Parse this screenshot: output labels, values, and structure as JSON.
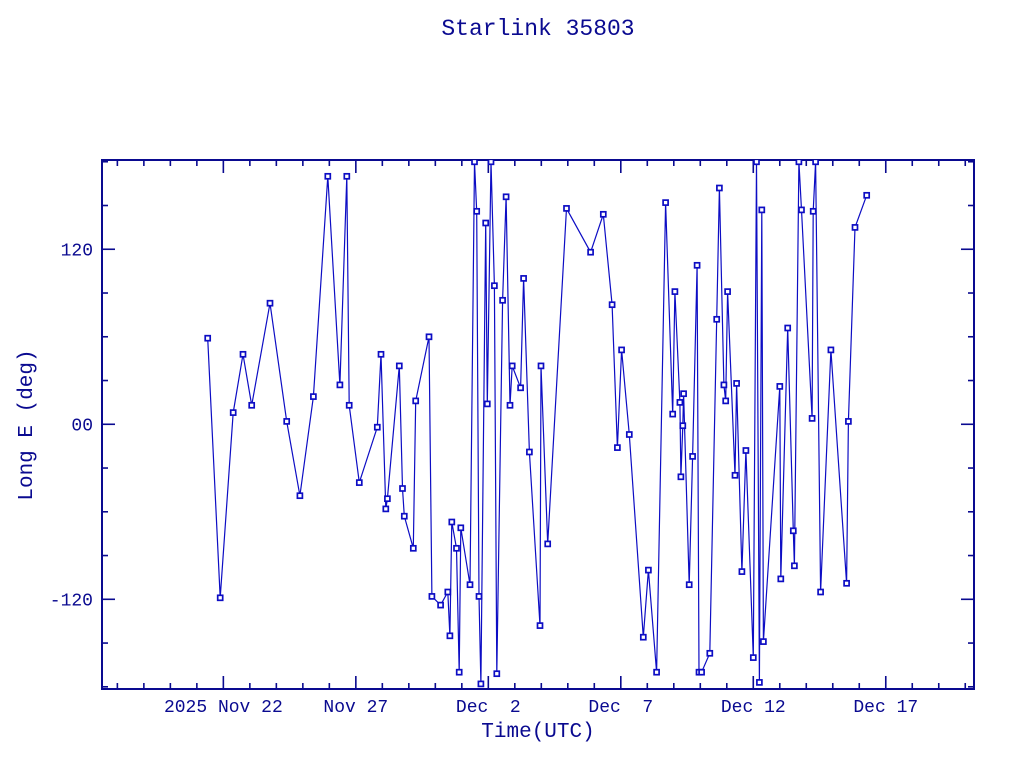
{
  "chart_data": {
    "type": "line",
    "title": "Starlink 35803",
    "xlabel": "Time(UTC)",
    "ylabel": "Long E (deg)",
    "x_unit": "days since 2025-11-17 00:00 UTC",
    "xlim": [
      0.42,
      33.33
    ],
    "ylim": [
      -181.5,
      181.2
    ],
    "grid": false,
    "legend": "none",
    "x_major_ticks": [
      {
        "t": 5,
        "label": "2025 Nov 22"
      },
      {
        "t": 10,
        "label": "Nov 27"
      },
      {
        "t": 15,
        "label": "Dec  2"
      },
      {
        "t": 20,
        "label": "Dec  7"
      },
      {
        "t": 25,
        "label": "Dec 12"
      },
      {
        "t": 30,
        "label": "Dec 17"
      }
    ],
    "x_minor_tick_step_days": 1,
    "x_minor_tick_range": [
      1,
      33
    ],
    "y_major_ticks": [
      {
        "v": 120,
        "label": "120"
      },
      {
        "v": 0,
        "label": "00"
      },
      {
        "v": -120,
        "label": "-120"
      }
    ],
    "y_minor_tick_step_deg": 30,
    "y_minor_tick_range": [
      -180,
      180
    ],
    "colors": {
      "axis": "#0a0a90",
      "data": "#0d0dc4",
      "background": "#ffffff"
    },
    "marker": "open-square",
    "marker_size_px": 5,
    "points": [
      [
        4.41,
        59
      ],
      [
        4.88,
        -119
      ],
      [
        5.37,
        8
      ],
      [
        5.74,
        48
      ],
      [
        6.07,
        13
      ],
      [
        6.76,
        83
      ],
      [
        7.39,
        2
      ],
      [
        7.89,
        -49
      ],
      [
        8.4,
        19
      ],
      [
        8.94,
        170
      ],
      [
        9.4,
        27
      ],
      [
        9.66,
        170
      ],
      [
        9.75,
        13
      ],
      [
        10.13,
        -40
      ],
      [
        10.81,
        -2
      ],
      [
        10.95,
        48
      ],
      [
        11.13,
        -58
      ],
      [
        11.19,
        -51
      ],
      [
        11.64,
        40
      ],
      [
        11.76,
        -44
      ],
      [
        11.83,
        -63
      ],
      [
        12.17,
        -85
      ],
      [
        12.26,
        16
      ],
      [
        12.76,
        60
      ],
      [
        12.87,
        -118
      ],
      [
        13.2,
        -124
      ],
      [
        13.47,
        -115
      ],
      [
        13.55,
        -145
      ],
      [
        13.62,
        -67
      ],
      [
        13.8,
        -85
      ],
      [
        13.9,
        -170
      ],
      [
        13.96,
        -71
      ],
      [
        14.31,
        -110
      ],
      [
        14.48,
        180
      ],
      [
        14.56,
        146
      ],
      [
        14.65,
        -118
      ],
      [
        14.72,
        -178
      ],
      [
        14.9,
        138
      ],
      [
        14.96,
        14
      ],
      [
        15.1,
        180
      ],
      [
        15.23,
        95
      ],
      [
        15.32,
        -171
      ],
      [
        15.54,
        85
      ],
      [
        15.67,
        156
      ],
      [
        15.82,
        13
      ],
      [
        15.9,
        40
      ],
      [
        16.22,
        25
      ],
      [
        16.33,
        100
      ],
      [
        16.55,
        -19
      ],
      [
        16.95,
        -138
      ],
      [
        16.99,
        40
      ],
      [
        17.24,
        -82
      ],
      [
        17.95,
        148
      ],
      [
        18.86,
        118
      ],
      [
        19.34,
        144
      ],
      [
        19.67,
        82
      ],
      [
        19.87,
        -16
      ],
      [
        20.03,
        51
      ],
      [
        20.32,
        -7
      ],
      [
        20.85,
        -146
      ],
      [
        21.04,
        -100
      ],
      [
        21.35,
        -170
      ],
      [
        21.69,
        152
      ],
      [
        21.96,
        7
      ],
      [
        22.04,
        91
      ],
      [
        22.23,
        15
      ],
      [
        22.27,
        -36
      ],
      [
        22.34,
        -1
      ],
      [
        22.37,
        21
      ],
      [
        22.58,
        -110
      ],
      [
        22.71,
        -22
      ],
      [
        22.88,
        109
      ],
      [
        22.95,
        -170
      ],
      [
        23.05,
        -170
      ],
      [
        23.36,
        -157
      ],
      [
        23.62,
        72
      ],
      [
        23.72,
        162
      ],
      [
        23.89,
        27
      ],
      [
        23.96,
        16
      ],
      [
        24.03,
        91
      ],
      [
        24.31,
        -35
      ],
      [
        24.37,
        28
      ],
      [
        24.57,
        -101
      ],
      [
        24.72,
        -18
      ],
      [
        25.0,
        -160
      ],
      [
        25.12,
        180
      ],
      [
        25.23,
        -177
      ],
      [
        25.32,
        147
      ],
      [
        25.38,
        -149
      ],
      [
        26.0,
        26
      ],
      [
        26.04,
        -106
      ],
      [
        26.3,
        66
      ],
      [
        26.51,
        -73
      ],
      [
        26.55,
        -97
      ],
      [
        26.72,
        180
      ],
      [
        26.82,
        147
      ],
      [
        27.22,
        4
      ],
      [
        27.26,
        146
      ],
      [
        27.35,
        180
      ],
      [
        27.54,
        -115
      ],
      [
        27.93,
        51
      ],
      [
        28.52,
        -109
      ],
      [
        28.59,
        2
      ],
      [
        28.84,
        135
      ],
      [
        29.28,
        157
      ]
    ]
  }
}
